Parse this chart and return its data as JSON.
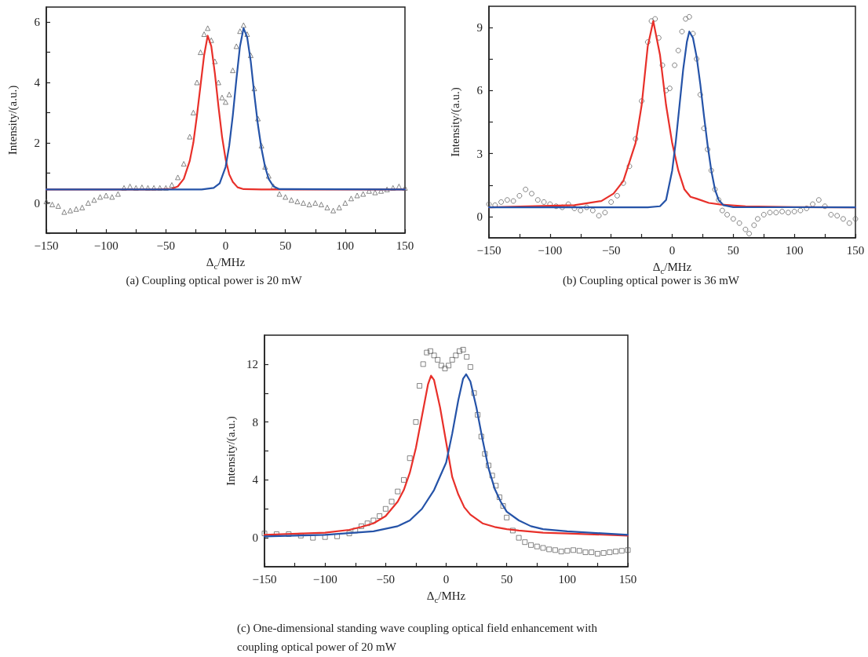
{
  "chart_data": [
    {
      "type": "line",
      "title": "(a) Coupling optical power is 20 mW",
      "xlabel": "Δ$_{c}$/MHz",
      "ylabel": "Intensity/(a.u.)",
      "xlim": [
        -150,
        150
      ],
      "ylim": [
        -1,
        6.5
      ],
      "xticks": [
        -150,
        {
          "value": -125,
          "label": null
        },
        -100,
        {
          "value": -75,
          "label": null
        },
        -50,
        {
          "value": -25,
          "label": null
        },
        0,
        {
          "value": 25,
          "label": null
        },
        50,
        {
          "value": 75,
          "label": null
        },
        100,
        {
          "value": 125,
          "label": null
        },
        150
      ],
      "yticks": [
        {
          "value": -1,
          "label": null
        },
        0,
        {
          "value": 1,
          "label": null
        },
        2,
        {
          "value": 3,
          "label": null
        },
        4,
        {
          "value": 5,
          "label": null
        },
        6
      ],
      "grid": false,
      "series": [
        {
          "type": "scatter",
          "marker": "triangle",
          "color": "#555555",
          "x": [
            -150,
            -145,
            -140,
            -135,
            -130,
            -125,
            -120,
            -115,
            -110,
            -105,
            -100,
            -95,
            -90,
            -85,
            -80,
            -75,
            -70,
            -65,
            -60,
            -55,
            -50,
            -45,
            -40,
            -35,
            -30,
            -27,
            -24,
            -21,
            -18,
            -15,
            -12,
            -9,
            -6,
            -3,
            0,
            3,
            6,
            9,
            12,
            15,
            18,
            21,
            24,
            27,
            30,
            33,
            36,
            40,
            45,
            50,
            55,
            60,
            65,
            70,
            75,
            80,
            85,
            90,
            95,
            100,
            105,
            110,
            115,
            120,
            125,
            130,
            135,
            140,
            145,
            150
          ],
          "values": [
            0.05,
            -0.05,
            -0.1,
            -0.3,
            -0.25,
            -0.2,
            -0.15,
            0.0,
            0.1,
            0.2,
            0.25,
            0.2,
            0.3,
            0.5,
            0.55,
            0.5,
            0.52,
            0.5,
            0.5,
            0.5,
            0.5,
            0.6,
            0.85,
            1.3,
            2.2,
            3.0,
            4.0,
            5.0,
            5.6,
            5.8,
            5.4,
            4.7,
            4.0,
            3.5,
            3.35,
            3.6,
            4.4,
            5.2,
            5.7,
            5.9,
            5.6,
            4.9,
            3.8,
            2.8,
            1.9,
            1.2,
            0.9,
            0.55,
            0.3,
            0.2,
            0.1,
            0.05,
            0.0,
            -0.05,
            0.0,
            -0.05,
            -0.15,
            -0.25,
            -0.15,
            0.0,
            0.15,
            0.25,
            0.3,
            0.4,
            0.35,
            0.4,
            0.45,
            0.5,
            0.55,
            0.5
          ]
        },
        {
          "type": "line",
          "marker": "none",
          "color": "#e8302a",
          "x": [
            -150,
            -60,
            -45,
            -40,
            -35,
            -30,
            -27,
            -24,
            -21,
            -18,
            -15,
            -12,
            -9,
            -6,
            -3,
            0,
            3,
            6,
            10,
            15,
            30,
            150
          ],
          "values": [
            0.45,
            0.45,
            0.47,
            0.55,
            0.8,
            1.4,
            2.0,
            2.9,
            3.9,
            4.9,
            5.55,
            5.2,
            4.3,
            3.2,
            2.2,
            1.45,
            0.95,
            0.7,
            0.52,
            0.46,
            0.45,
            0.45
          ]
        },
        {
          "type": "line",
          "marker": "none",
          "color": "#2553a8",
          "x": [
            -150,
            -20,
            -10,
            -5,
            0,
            3,
            6,
            9,
            12,
            15,
            18,
            21,
            24,
            27,
            30,
            33,
            36,
            40,
            45,
            150
          ],
          "values": [
            0.45,
            0.45,
            0.5,
            0.65,
            1.2,
            1.9,
            2.9,
            4.1,
            5.2,
            5.8,
            5.5,
            4.7,
            3.6,
            2.6,
            1.8,
            1.2,
            0.8,
            0.55,
            0.46,
            0.45
          ]
        }
      ]
    },
    {
      "type": "line",
      "title": "(b) Coupling optical power is 36 mW",
      "xlabel": "Δ$_{c}$/MHz",
      "ylabel": "Intensity/(a.u.)",
      "xlim": [
        -150,
        150
      ],
      "ylim": [
        -1,
        10
      ],
      "xticks": [
        -150,
        {
          "value": -125,
          "label": null
        },
        -100,
        {
          "value": -75,
          "label": null
        },
        -50,
        {
          "value": -25,
          "label": null
        },
        0,
        {
          "value": 25,
          "label": null
        },
        50,
        {
          "value": 75,
          "label": null
        },
        100,
        {
          "value": 125,
          "label": null
        },
        150
      ],
      "yticks": [
        0,
        {
          "value": 1.5,
          "label": null
        },
        3,
        {
          "value": 4.5,
          "label": null
        },
        6,
        {
          "value": 7.5,
          "label": null
        },
        9
      ],
      "grid": false,
      "series": [
        {
          "type": "scatter",
          "marker": "circle",
          "color": "#555555",
          "x": [
            -150,
            -145,
            -140,
            -135,
            -130,
            -125,
            -120,
            -115,
            -110,
            -105,
            -100,
            -95,
            -90,
            -85,
            -80,
            -75,
            -70,
            -65,
            -60,
            -55,
            -50,
            -45,
            -40,
            -35,
            -30,
            -25,
            -20,
            -17,
            -14,
            -11,
            -8,
            -5,
            -2,
            2,
            5,
            8,
            11,
            14,
            17,
            20,
            23,
            26,
            29,
            32,
            35,
            38,
            41,
            45,
            50,
            55,
            60,
            63,
            67,
            70,
            75,
            80,
            85,
            90,
            95,
            100,
            105,
            110,
            115,
            120,
            125,
            130,
            135,
            140,
            145,
            150
          ],
          "values": [
            0.6,
            0.55,
            0.7,
            0.8,
            0.75,
            1.0,
            1.3,
            1.1,
            0.8,
            0.7,
            0.6,
            0.5,
            0.45,
            0.6,
            0.4,
            0.3,
            0.45,
            0.3,
            0.05,
            0.2,
            0.7,
            1.0,
            1.6,
            2.4,
            3.7,
            5.5,
            8.3,
            9.3,
            9.4,
            8.5,
            7.2,
            6.0,
            6.1,
            7.2,
            7.9,
            8.8,
            9.4,
            9.5,
            8.7,
            7.5,
            5.8,
            4.2,
            3.2,
            2.2,
            1.3,
            0.8,
            0.3,
            0.1,
            -0.1,
            -0.3,
            -0.6,
            -0.8,
            -0.4,
            -0.1,
            0.1,
            0.2,
            0.2,
            0.25,
            0.2,
            0.25,
            0.3,
            0.4,
            0.6,
            0.8,
            0.5,
            0.1,
            0.05,
            -0.1,
            -0.3,
            -0.1
          ]
        },
        {
          "type": "line",
          "marker": "none",
          "color": "#e8302a",
          "x": [
            -150,
            -80,
            -58,
            -48,
            -40,
            -30,
            -25,
            -20,
            -15.5,
            -10,
            -5,
            0,
            5,
            10,
            15,
            20,
            30,
            40,
            60,
            100,
            150
          ],
          "values": [
            0.45,
            0.55,
            0.75,
            1.1,
            1.7,
            3.5,
            5.3,
            8.1,
            9.3,
            7.7,
            5.3,
            3.5,
            2.2,
            1.3,
            0.95,
            0.86,
            0.66,
            0.58,
            0.5,
            0.46,
            0.45
          ]
        },
        {
          "type": "line",
          "marker": "none",
          "color": "#2553a8",
          "x": [
            -150,
            -20,
            -10,
            -5,
            0,
            3,
            6,
            9,
            12,
            14,
            17,
            20,
            23,
            26,
            29,
            32,
            35,
            38,
            42,
            50,
            150
          ],
          "values": [
            0.45,
            0.45,
            0.5,
            0.8,
            2.2,
            3.6,
            5.3,
            7.0,
            8.3,
            8.8,
            8.5,
            7.6,
            6.3,
            4.8,
            3.4,
            2.2,
            1.3,
            0.8,
            0.55,
            0.46,
            0.45
          ]
        }
      ]
    },
    {
      "type": "line",
      "title": "(c) One-dimensional standing wave coupling optical field enhancement with coupling optical power of 20 mW",
      "xlabel": "Δ$_{c}$/MHz",
      "ylabel": "Intensity/(a.u.)",
      "xlim": [
        -150,
        150
      ],
      "ylim": [
        -2,
        14
      ],
      "xticks": [
        -150,
        {
          "value": -125,
          "label": null
        },
        -100,
        {
          "value": -75,
          "label": null
        },
        -50,
        {
          "value": -25,
          "label": null
        },
        0,
        {
          "value": 25,
          "label": null
        },
        50,
        {
          "value": 75,
          "label": null
        },
        100,
        {
          "value": 125,
          "label": null
        },
        150
      ],
      "yticks": [
        0,
        {
          "value": 2,
          "label": null
        },
        4,
        {
          "value": 6,
          "label": null
        },
        8,
        {
          "value": 10,
          "label": null
        },
        12
      ],
      "grid": false,
      "series": [
        {
          "type": "scatter",
          "marker": "square",
          "color": "#555555",
          "x": [
            -150,
            -140,
            -130,
            -120,
            -110,
            -100,
            -90,
            -80,
            -75,
            -70,
            -65,
            -60,
            -55,
            -50,
            -45,
            -40,
            -35,
            -30,
            -25,
            -22,
            -19,
            -16,
            -13,
            -10,
            -7,
            -4,
            -1,
            2,
            5,
            8,
            11,
            14,
            17,
            20,
            23,
            26,
            29,
            32,
            35,
            38,
            41,
            44,
            47,
            50,
            55,
            60,
            65,
            70,
            75,
            80,
            85,
            90,
            95,
            100,
            105,
            110,
            115,
            120,
            125,
            130,
            135,
            140,
            145,
            150
          ],
          "values": [
            0.3,
            0.25,
            0.25,
            0.15,
            0.0,
            0.05,
            0.1,
            0.3,
            0.5,
            0.8,
            1.0,
            1.2,
            1.5,
            2.0,
            2.5,
            3.2,
            4.0,
            5.5,
            8.0,
            10.5,
            12.0,
            12.8,
            12.9,
            12.6,
            12.3,
            11.9,
            11.7,
            11.9,
            12.3,
            12.6,
            12.9,
            13.0,
            12.5,
            11.8,
            10.0,
            8.5,
            7.0,
            5.8,
            5.0,
            4.3,
            3.6,
            2.8,
            2.2,
            1.4,
            0.5,
            0.0,
            -0.3,
            -0.5,
            -0.6,
            -0.7,
            -0.8,
            -0.85,
            -0.95,
            -0.9,
            -0.85,
            -0.9,
            -1.0,
            -1.0,
            -1.1,
            -1.05,
            -1.0,
            -0.95,
            -0.9,
            -0.85
          ]
        },
        {
          "type": "line",
          "marker": "none",
          "color": "#e8302a",
          "x": [
            -150,
            -100,
            -80,
            -70,
            -60,
            -50,
            -40,
            -35,
            -30,
            -25,
            -20,
            -15,
            -12.5,
            -10,
            -5,
            0,
            5,
            10,
            15,
            20,
            30,
            40,
            50,
            60,
            80,
            100,
            150
          ],
          "values": [
            0.2,
            0.35,
            0.55,
            0.75,
            1.0,
            1.5,
            2.5,
            3.3,
            4.5,
            6.2,
            8.4,
            10.6,
            11.2,
            10.9,
            9.0,
            6.6,
            4.2,
            3.0,
            2.1,
            1.6,
            1.0,
            0.75,
            0.6,
            0.5,
            0.35,
            0.3,
            0.15
          ]
        },
        {
          "type": "line",
          "marker": "none",
          "color": "#2553a8",
          "x": [
            -150,
            -100,
            -60,
            -40,
            -30,
            -20,
            -10,
            0,
            5,
            10,
            14,
            16.5,
            20,
            25,
            30,
            35,
            40,
            45,
            50,
            60,
            70,
            80,
            100,
            150
          ],
          "values": [
            0.1,
            0.2,
            0.45,
            0.8,
            1.2,
            2.0,
            3.3,
            5.2,
            7.2,
            9.5,
            11.0,
            11.3,
            10.8,
            9.0,
            6.8,
            4.8,
            3.4,
            2.5,
            1.8,
            1.2,
            0.8,
            0.6,
            0.45,
            0.2
          ]
        }
      ]
    }
  ]
}
